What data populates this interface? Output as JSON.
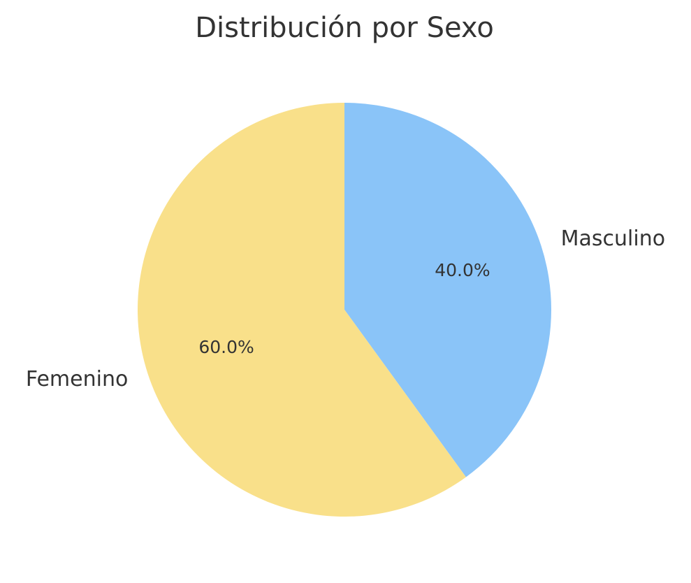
{
  "chart_data": {
    "type": "pie",
    "title": "Distribución por Sexo",
    "categories": [
      "Masculino",
      "Femenino"
    ],
    "values": [
      40,
      60
    ],
    "value_labels": [
      "40.0%",
      "60.0%"
    ],
    "colors": [
      "#8ac4f8",
      "#f9e08a"
    ]
  }
}
